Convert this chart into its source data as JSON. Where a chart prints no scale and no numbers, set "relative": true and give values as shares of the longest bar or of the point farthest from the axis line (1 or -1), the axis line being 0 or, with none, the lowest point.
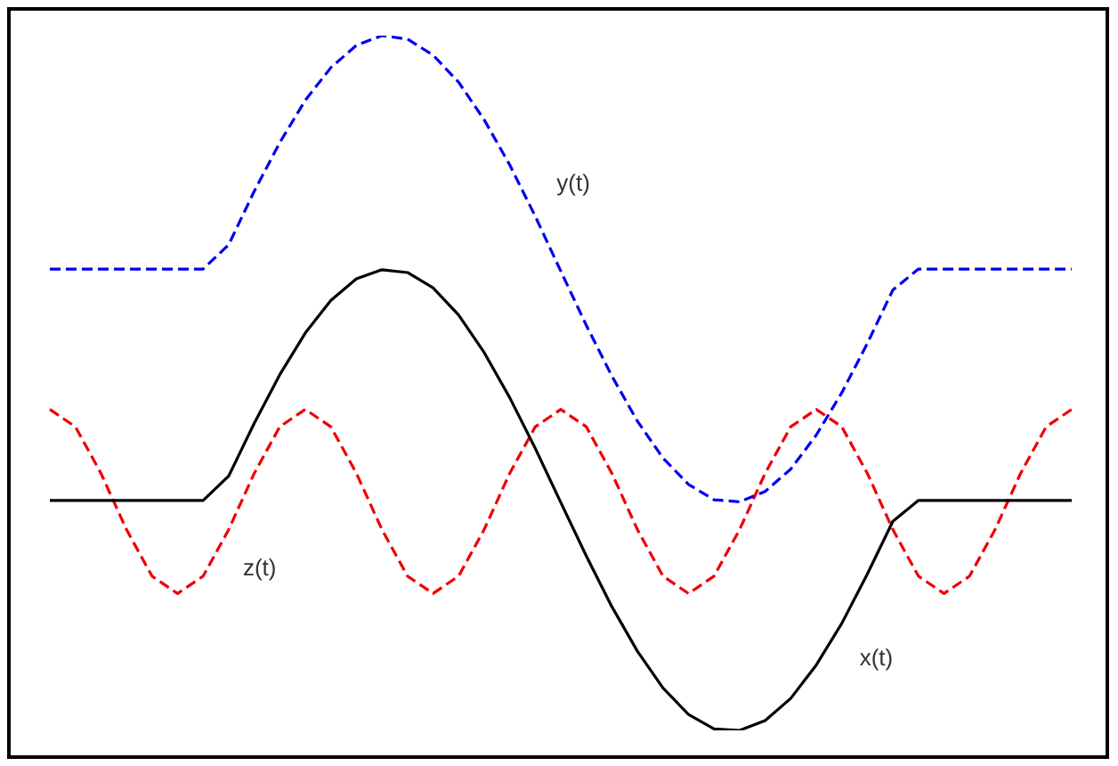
{
  "chart_data": {
    "type": "line",
    "relative": true,
    "legend": false,
    "grid": false,
    "marker": "none",
    "categories": [
      null,
      null,
      null,
      null,
      null,
      null,
      null,
      null,
      null,
      null,
      null,
      null,
      null,
      null,
      null,
      null,
      null,
      null,
      null,
      null,
      null,
      null,
      null,
      null,
      null,
      null,
      null,
      null,
      null,
      null,
      null,
      null,
      null,
      null,
      null,
      null,
      null,
      null,
      null,
      null,
      null
    ],
    "series": [
      {
        "name": "x(t)",
        "color": "#000000",
        "line_style": "solid",
        "values": [
          0.331,
          0.331,
          0.331,
          0.331,
          0.331,
          0.331,
          0.331,
          0.366,
          0.442,
          0.512,
          0.572,
          0.619,
          0.65,
          0.663,
          0.659,
          0.637,
          0.598,
          0.544,
          0.479,
          0.406,
          0.328,
          0.251,
          0.178,
          0.114,
          0.061,
          0.023,
          0.002,
          0,
          0.014,
          0.046,
          0.094,
          0.154,
          0.225,
          0.301,
          0.331,
          0.331,
          0.331,
          0.331,
          0.331,
          0.331,
          0.331
        ]
      },
      {
        "name": "y(t)",
        "color": "#0000ee",
        "line_style": "dashed",
        "values": [
          0.664,
          0.664,
          0.664,
          0.664,
          0.664,
          0.664,
          0.664,
          0.699,
          0.776,
          0.846,
          0.907,
          0.954,
          0.986,
          1,
          0.995,
          0.972,
          0.933,
          0.879,
          0.814,
          0.74,
          0.661,
          0.583,
          0.51,
          0.445,
          0.392,
          0.354,
          0.332,
          0.329,
          0.344,
          0.376,
          0.425,
          0.486,
          0.557,
          0.634,
          0.664,
          0.664,
          0.664,
          0.664,
          0.664,
          0.664,
          0.664
        ]
      },
      {
        "name": "z(t)",
        "color": "#ee0000",
        "line_style": "dashed",
        "values": [
          0.462,
          0.437,
          0.37,
          0.289,
          0.222,
          0.197,
          0.222,
          0.289,
          0.37,
          0.437,
          0.462,
          0.437,
          0.37,
          0.289,
          0.222,
          0.197,
          0.222,
          0.289,
          0.37,
          0.437,
          0.462,
          0.437,
          0.37,
          0.289,
          0.222,
          0.197,
          0.222,
          0.289,
          0.37,
          0.437,
          0.462,
          0.437,
          0.37,
          0.289,
          0.222,
          0.197,
          0.222,
          0.289,
          0.37,
          0.437,
          0.462
        ]
      }
    ]
  }
}
